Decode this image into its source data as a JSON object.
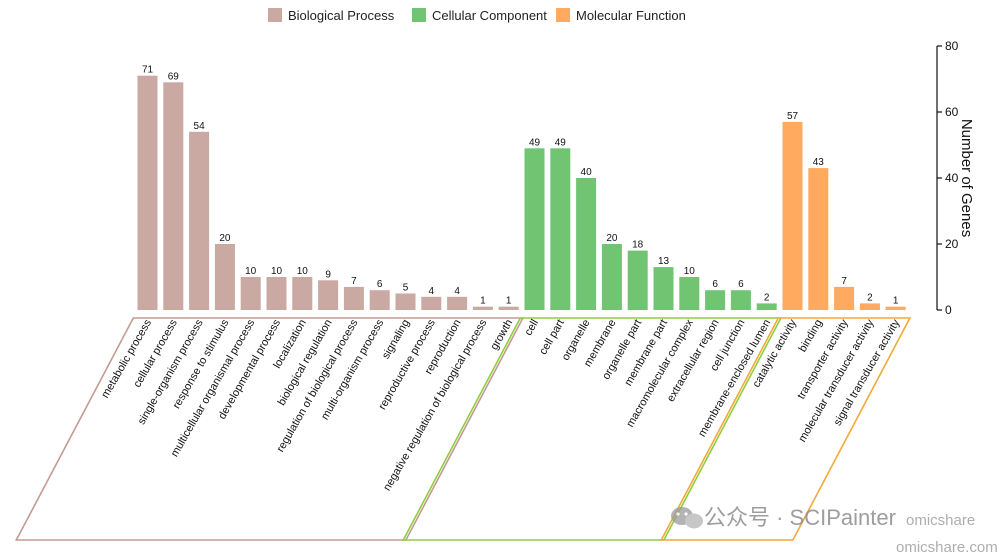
{
  "chart_data": {
    "type": "bar",
    "ylabel": "Number of Genes",
    "ylim": [
      0,
      80
    ],
    "yticks": [
      0,
      20,
      40,
      60,
      80
    ],
    "legend_position": "top",
    "groups": [
      {
        "name": "Biological Process",
        "color": "#c9a9a1",
        "bracket_color": "#c39a92",
        "categories": [
          "metabolic process",
          "cellular process",
          "single-organism process",
          "response to stimulus",
          "multicellular organismal process",
          "developmental process",
          "localization",
          "biological regulation",
          "regulation of biological process",
          "multi-organism process",
          "signaling",
          "reproductive process",
          "reproduction",
          "negative regulation of biological process",
          "growth"
        ],
        "values": [
          71,
          69,
          54,
          20,
          10,
          10,
          10,
          9,
          7,
          6,
          5,
          4,
          4,
          1,
          1
        ]
      },
      {
        "name": "Cellular Component",
        "color": "#70c472",
        "bracket_color": "#8fce3e",
        "categories": [
          "cell",
          "cell part",
          "organelle",
          "membrane",
          "organelle part",
          "membrane part",
          "macromolecular complex",
          "extracellular region",
          "cell junction",
          "membrane-enclosed lumen"
        ],
        "values": [
          49,
          49,
          40,
          20,
          18,
          13,
          10,
          6,
          6,
          2
        ]
      },
      {
        "name": "Molecular Function",
        "color": "#ffaa5e",
        "bracket_color": "#f2a93a",
        "categories": [
          "catalytic activity",
          "binding",
          "transporter activity",
          "molecular transducer activity",
          "signal transducer activity"
        ],
        "values": [
          57,
          43,
          7,
          2,
          1
        ]
      }
    ]
  },
  "watermark": {
    "channel": "公众号 · SCIPainter",
    "brand": "omicshare",
    "url": "omicshare.com"
  }
}
